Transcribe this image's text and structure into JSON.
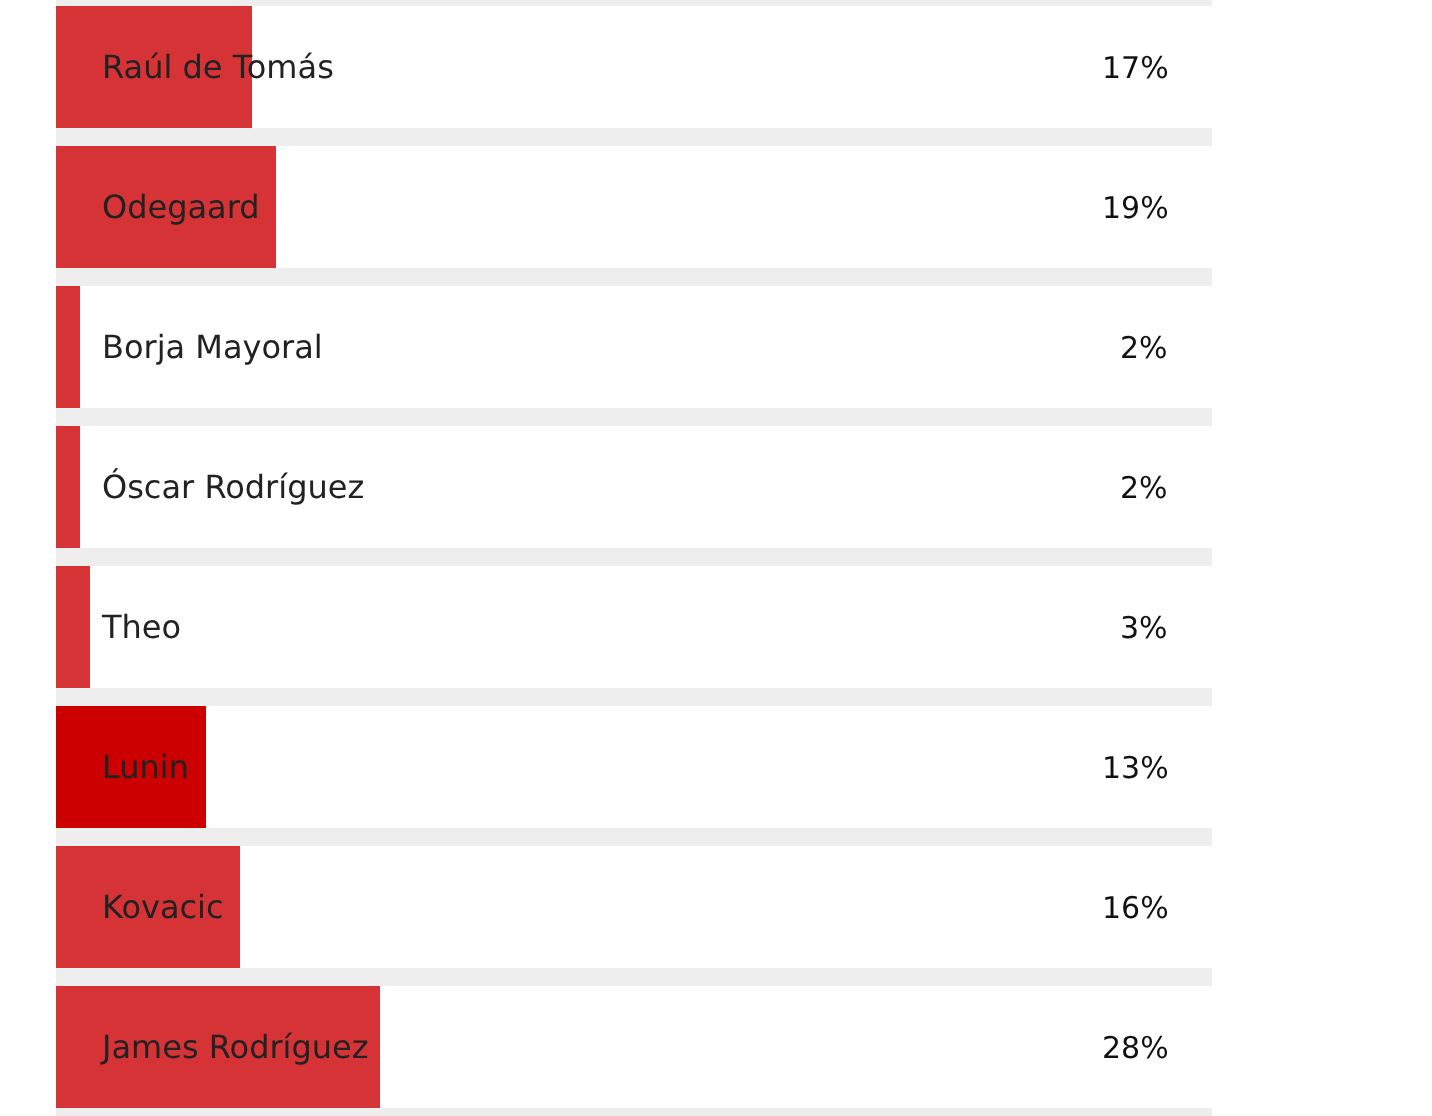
{
  "chart_data": {
    "type": "bar",
    "orientation": "horizontal",
    "categories": [
      "Raúl de Tomás",
      "Odegaard",
      "Borja Mayoral",
      "Óscar Rodríguez",
      "Theo",
      "Lunin",
      "Kovacic",
      "James Rodríguez"
    ],
    "values": [
      17,
      19,
      2,
      2,
      3,
      13,
      16,
      28
    ],
    "colors": [
      "#d63337",
      "#d63337",
      "#d63337",
      "#d63337",
      "#d63337",
      "#cc0000",
      "#d63337",
      "#d63337"
    ],
    "value_labels": [
      "17%",
      "19%",
      "2%",
      "2%",
      "3%",
      "13%",
      "16%",
      "28%"
    ],
    "xlim": [
      0,
      100
    ],
    "tick_labels": "y"
  }
}
